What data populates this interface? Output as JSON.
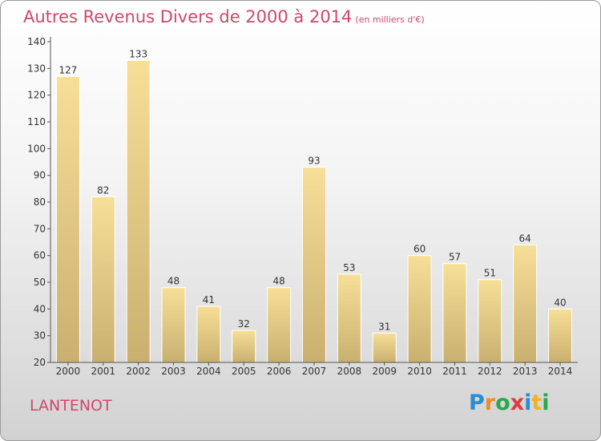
{
  "title": "Autres Revenus Divers de 2000 à 2014",
  "subtitle": "(en milliers d'€)",
  "location": "LANTENOT",
  "logo": {
    "text": "Proxiti",
    "letters": [
      {
        "ch": "P",
        "color": "#2a8bd6"
      },
      {
        "ch": "r",
        "color": "#f08a24"
      },
      {
        "ch": "o",
        "color": "#2aa84a"
      },
      {
        "ch": "x",
        "color": "#e23b3b"
      },
      {
        "ch": "i",
        "color": "#2a8bd6"
      },
      {
        "ch": "t",
        "color": "#f0b224"
      },
      {
        "ch": "i",
        "color": "#2aa84a"
      }
    ]
  },
  "chart_data": {
    "type": "bar",
    "categories": [
      "2000",
      "2001",
      "2002",
      "2003",
      "2004",
      "2005",
      "2006",
      "2007",
      "2008",
      "2009",
      "2010",
      "2011",
      "2012",
      "2013",
      "2014"
    ],
    "values": [
      127,
      82,
      133,
      48,
      41,
      32,
      48,
      93,
      53,
      31,
      60,
      57,
      51,
      64,
      40
    ],
    "title": "Autres Revenus Divers de 2000 à 2014",
    "xlabel": "",
    "ylabel": "",
    "ylim": [
      20,
      140
    ],
    "yticks": [
      20,
      30,
      40,
      50,
      60,
      70,
      80,
      90,
      100,
      110,
      120,
      130,
      140
    ],
    "grid": false,
    "bar_color_top": "#f7df98",
    "bar_color_bottom": "#c9b070",
    "axis_color": "#555555"
  }
}
